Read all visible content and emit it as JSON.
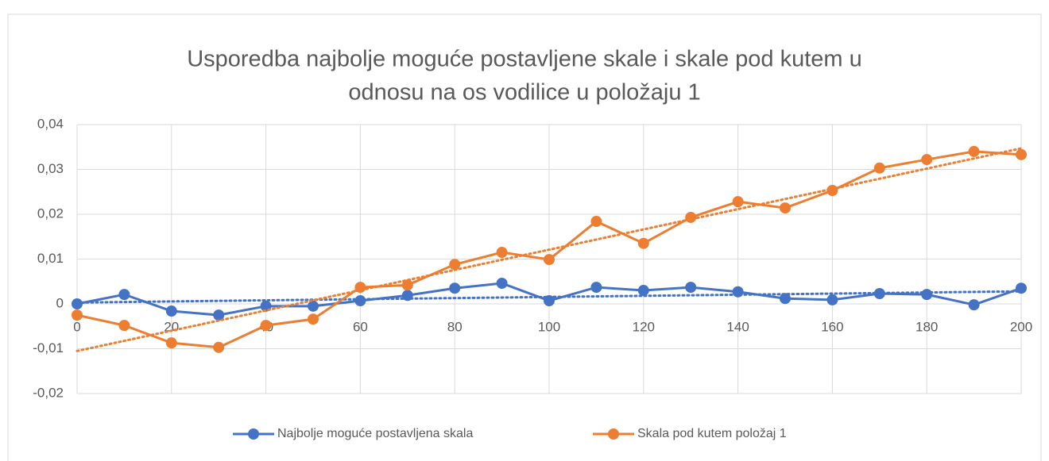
{
  "chart_data": {
    "type": "line",
    "title": [
      "Usporedba najbolje moguće postavljene skale i skale pod kutem u",
      "odnosu na os vodilice  u položaju 1"
    ],
    "x": [
      0,
      10,
      20,
      30,
      40,
      50,
      60,
      70,
      80,
      90,
      100,
      110,
      120,
      130,
      140,
      150,
      160,
      170,
      180,
      190,
      200
    ],
    "series": [
      {
        "name": "Najbolje moguće postavljena skala",
        "color": "#4472c4",
        "values": [
          0,
          0.0021,
          -0.0016,
          -0.0025,
          -0.0005,
          -0.0005,
          0.0007,
          0.0019,
          0.0035,
          0.0046,
          0.0007,
          0.0037,
          0.003,
          0.0037,
          0.0027,
          0.0012,
          0.0009,
          0.0023,
          0.0021,
          -0.0002,
          0.0035
        ],
        "trend": [
          0.0003,
          0.0028
        ]
      },
      {
        "name": "Skala pod kutem položaj 1",
        "color": "#ed7d31",
        "values": [
          -0.0025,
          -0.0048,
          -0.0087,
          -0.0097,
          -0.0048,
          -0.0034,
          0.0037,
          0.0042,
          0.0088,
          0.0115,
          0.0099,
          0.0184,
          0.0135,
          0.0193,
          0.0228,
          0.0214,
          0.0253,
          0.0303,
          0.0322,
          0.034,
          0.0333
        ],
        "trend": [
          -0.0105,
          0.0347
        ]
      }
    ],
    "xlim": [
      0,
      200
    ],
    "xticks": [
      0,
      20,
      40,
      60,
      80,
      100,
      120,
      140,
      160,
      180,
      200
    ],
    "ylim": [
      -0.02,
      0.04
    ],
    "yticks": [
      {
        "value": 0.04,
        "label": "0,04"
      },
      {
        "value": 0.03,
        "label": "0,03"
      },
      {
        "value": 0.02,
        "label": "0,02"
      },
      {
        "value": 0.01,
        "label": "0,01"
      },
      0,
      {
        "value": -0.01,
        "label": "-0,01"
      },
      {
        "value": -0.02,
        "label": "-0,02"
      }
    ],
    "grid": true,
    "legend": "bottom"
  }
}
